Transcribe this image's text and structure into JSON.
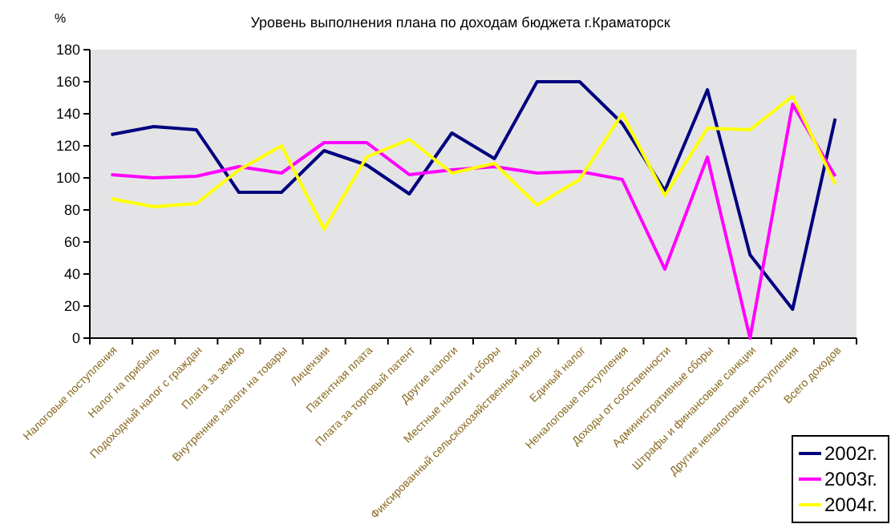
{
  "chart_data": {
    "type": "line",
    "title": "Уровень выполнения плана по доходам бюджета г.Краматорск",
    "ylabel": "%",
    "categories": [
      "Налоговые поступления",
      "Налог на прибыль",
      "Подоходный налог с граждан",
      "Плата за землю",
      "Внутренние налоги на товары",
      "Лицензии",
      "Патентная плата",
      "Плата за торговый патент",
      "Другие налоги",
      "Местные налоги и сборы",
      "Фиксированный сельскохозяйственный налог",
      "Единый налог",
      "Неналоговые поступления",
      "Доходы от собственности",
      "Административные сборы",
      "Штрафы и финансовые санкции",
      "Другие неналоговые поступления",
      "Всего доходов"
    ],
    "series": [
      {
        "name": "2002г.",
        "color": "#000080",
        "values": [
          127,
          132,
          130,
          91,
          91,
          117,
          108,
          90,
          128,
          112,
          160,
          160,
          134,
          92,
          155,
          52,
          18,
          137
        ]
      },
      {
        "name": "2003г.",
        "color": "#ff00ff",
        "values": [
          102,
          100,
          101,
          107,
          103,
          122,
          122,
          102,
          105,
          107,
          103,
          104,
          99,
          43,
          113,
          0,
          146,
          101
        ]
      },
      {
        "name": "2004г.",
        "color": "#ffff00",
        "values": [
          87,
          82,
          84,
          105,
          120,
          68,
          113,
          124,
          103,
          109,
          83,
          99,
          140,
          89,
          131,
          130,
          151,
          96
        ]
      }
    ],
    "ylim": [
      0,
      180
    ],
    "yticks": [
      0,
      20,
      40,
      60,
      80,
      100,
      120,
      140,
      160,
      180
    ],
    "grid": false,
    "legend": "bottom right"
  }
}
